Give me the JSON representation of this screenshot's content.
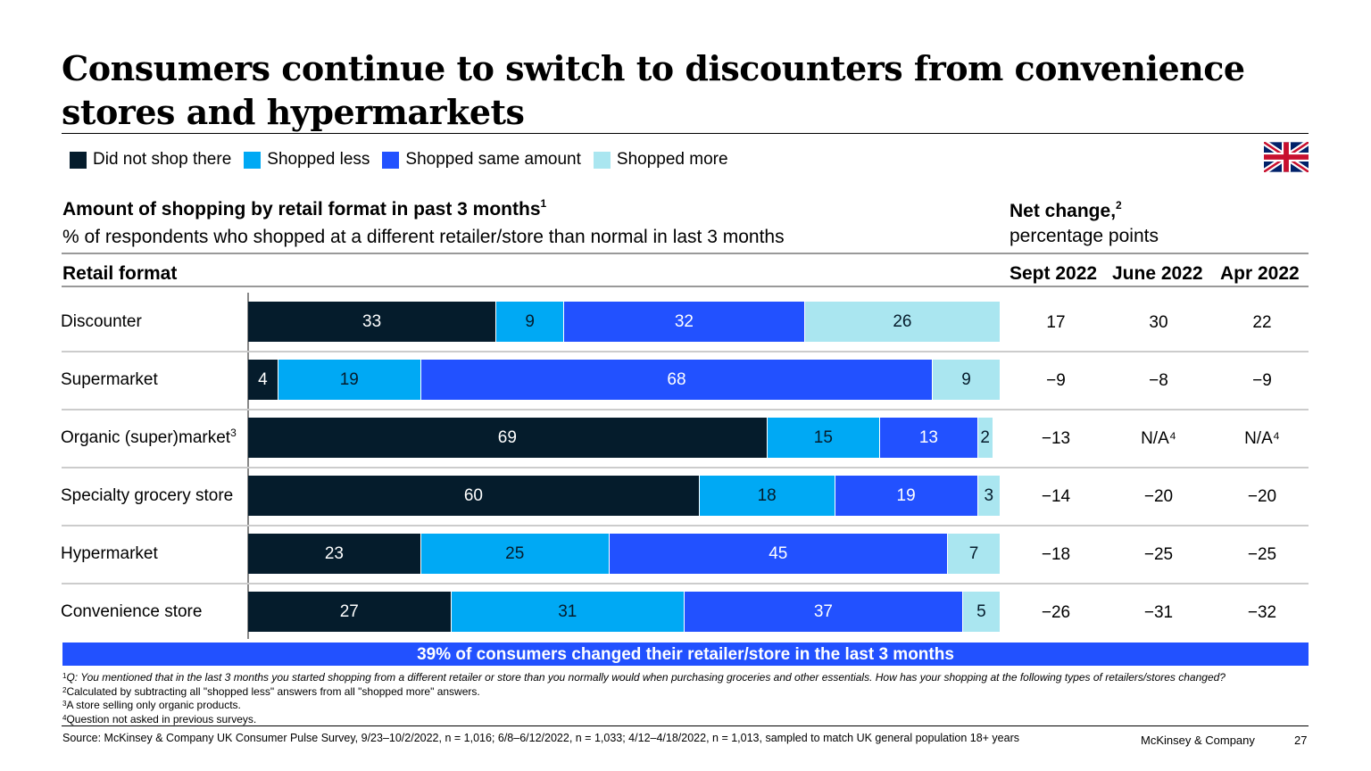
{
  "title": "Consumers continue to switch to discounters from convenience stores and hypermarkets",
  "flag_icon": "uk-flag-icon",
  "chart_data": {
    "type": "bar",
    "orientation": "horizontal-stacked-100",
    "title": "Amount of shopping by retail format in past 3 months",
    "title_footnote": "1",
    "subtitle": "% of respondents who shopped at a different retailer/store than normal in last 3 months",
    "category_header": "Retail format",
    "categories": [
      "Discounter",
      "Supermarket",
      "Organic (super)market",
      "Specialty grocery store",
      "Hypermarket",
      "Convenience store"
    ],
    "category_footnotes": [
      "",
      "",
      "3",
      "",
      "",
      ""
    ],
    "series": [
      {
        "name": "Did not shop there",
        "color": "#051c2c",
        "label_color": "#ffffff",
        "values": [
          33,
          4,
          69,
          60,
          23,
          27
        ]
      },
      {
        "name": "Shopped less",
        "color": "#00a9f4",
        "label_color": "#051c2c",
        "values": [
          9,
          19,
          15,
          18,
          25,
          31
        ]
      },
      {
        "name": "Shopped same amount",
        "color": "#2251ff",
        "label_color": "#ffffff",
        "values": [
          32,
          68,
          13,
          19,
          45,
          37
        ]
      },
      {
        "name": "Shopped more",
        "color": "#aae6f0",
        "label_color": "#051c2c",
        "values": [
          26,
          9,
          2,
          3,
          7,
          5
        ]
      }
    ],
    "legend_placement": "top-left",
    "net_change": {
      "title": "Net change,",
      "title_footnote": "2",
      "subtitle": "percentage points",
      "columns": [
        "Sept 2022",
        "June 2022",
        "Apr 2022"
      ],
      "rows": [
        [
          "17",
          "30",
          "22"
        ],
        [
          "−9",
          "−8",
          "−9"
        ],
        [
          "−13",
          "N/A⁴",
          "N/A⁴"
        ],
        [
          "−14",
          "−20",
          "−20"
        ],
        [
          "−18",
          "−25",
          "−25"
        ],
        [
          "−26",
          "−31",
          "−32"
        ]
      ]
    }
  },
  "banner": "39% of consumers changed their retailer/store in the last 3 months",
  "footnotes": [
    {
      "mark": "1",
      "text": "Q: You mentioned that in the last 3 months you started shopping from a different retailer or store than you normally would when purchasing groceries and other essentials. How has your shopping at the following types of retailers/stores changed?"
    },
    {
      "mark": "2",
      "text": "Calculated by subtracting all \"shopped less\" answers from all \"shopped more\" answers."
    },
    {
      "mark": "3",
      "text": "A store selling only organic products."
    },
    {
      "mark": "4",
      "text": "Question not asked in previous surveys."
    }
  ],
  "source": "Source: McKinsey & Company UK Consumer Pulse Survey, 9/23–10/2/2022, n = 1,016; 6/8–6/12/2022, n = 1,033; 4/12–4/18/2022, n = 1,013, sampled to match UK general population 18+ years",
  "brand": "McKinsey & Company",
  "page_number": "27"
}
